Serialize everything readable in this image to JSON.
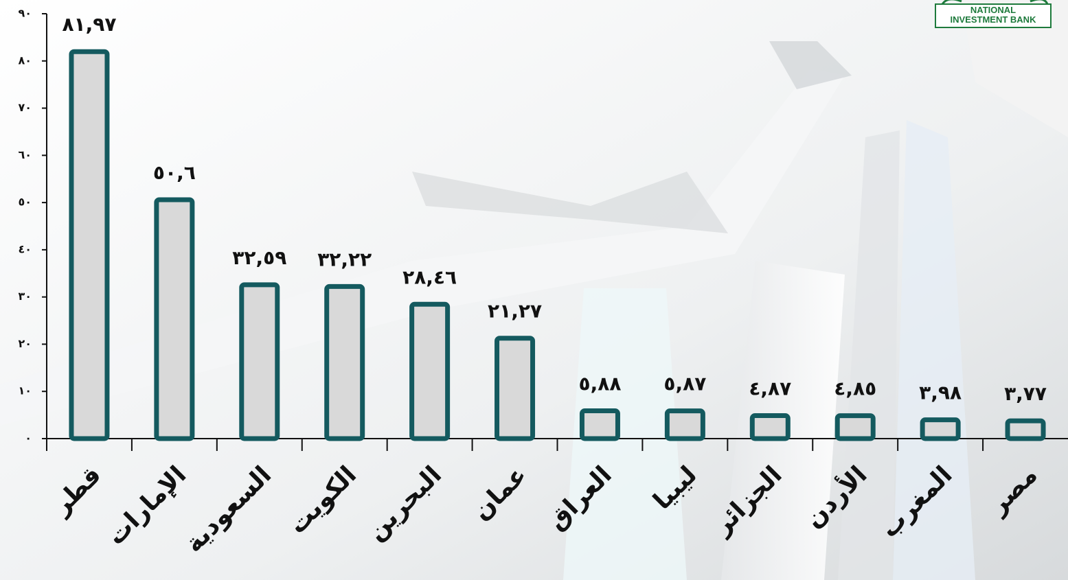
{
  "chart_data": {
    "type": "bar",
    "logo_text": [
      "NATIONAL",
      "INVESTMENT BANK"
    ],
    "categories": [
      "قطر",
      "الإمارات",
      "السعودية",
      "الكويت",
      "البحرين",
      "عمان",
      "العراق",
      "ليبيا",
      "الجزائر",
      "الأردن",
      "المغرب",
      "مصر"
    ],
    "values": [
      81.97,
      50.6,
      32.59,
      32.22,
      28.46,
      21.27,
      5.88,
      5.87,
      4.87,
      4.85,
      3.98,
      3.77
    ],
    "value_labels": [
      "٨١,٩٧",
      "٥٠,٦",
      "٣٢,٥٩",
      "٣٢,٢٢",
      "٢٨,٤٦",
      "٢١,٢٧",
      "٥,٨٨",
      "٥,٨٧",
      "٤,٨٧",
      "٤,٨٥",
      "٣,٩٨",
      "٣,٧٧"
    ],
    "color": "#d9d9d9",
    "edge_color": "#145a5f",
    "ylim": [
      0,
      90
    ],
    "yticks": [
      {
        "value": 0,
        "label": "٠"
      },
      {
        "value": 10,
        "label": "١٠"
      },
      {
        "value": 20,
        "label": "٢٠"
      },
      {
        "value": 30,
        "label": "٣٠"
      },
      {
        "value": 40,
        "label": "٤٠"
      },
      {
        "value": 50,
        "label": "٥٠"
      },
      {
        "value": 60,
        "label": "٦٠"
      },
      {
        "value": 70,
        "label": "٧٠"
      },
      {
        "value": 80,
        "label": "٨٠"
      },
      {
        "value": 90,
        "label": "٩٠"
      }
    ]
  }
}
